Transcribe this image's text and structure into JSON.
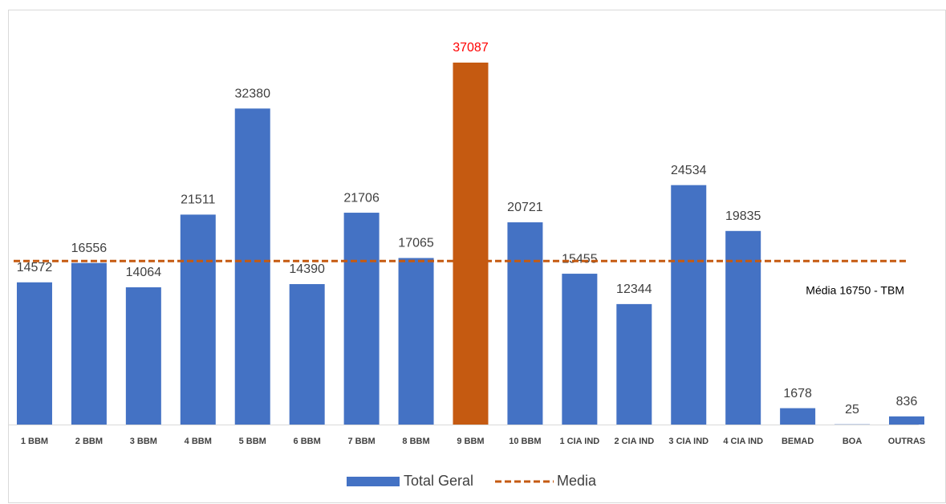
{
  "chart_data": {
    "type": "bar",
    "categories": [
      "1 BBM",
      "2 BBM",
      "3 BBM",
      "4 BBM",
      "5 BBM",
      "6 BBM",
      "7 BBM",
      "8 BBM",
      "9 BBM",
      "10 BBM",
      "1 CIA IND",
      "2 CIA IND",
      "3 CIA IND",
      "4 CIA IND",
      "BEMAD",
      "BOA",
      "OUTRAS"
    ],
    "series": [
      {
        "name": "Total Geral",
        "color": "#4472c4",
        "values": [
          14572,
          16556,
          14064,
          21511,
          32380,
          14390,
          21706,
          17065,
          37087,
          20721,
          15455,
          12344,
          24534,
          19835,
          1678,
          25,
          836
        ],
        "colors": [
          "#4472c4",
          "#4472c4",
          "#4472c4",
          "#4472c4",
          "#4472c4",
          "#4472c4",
          "#4472c4",
          "#4472c4",
          "#c55a11",
          "#4472c4",
          "#4472c4",
          "#4472c4",
          "#4472c4",
          "#4472c4",
          "#4472c4",
          "#4472c4",
          "#4472c4"
        ],
        "label_colors": [
          "#404040",
          "#404040",
          "#404040",
          "#404040",
          "#404040",
          "#404040",
          "#404040",
          "#404040",
          "#ff0000",
          "#404040",
          "#404040",
          "#404040",
          "#404040",
          "#404040",
          "#404040",
          "#404040",
          "#404040"
        ]
      }
    ],
    "mean_line": {
      "name": "Media",
      "value": 16750,
      "color": "#c55a11",
      "annotation": "Média 16750 - TBM"
    }
  }
}
